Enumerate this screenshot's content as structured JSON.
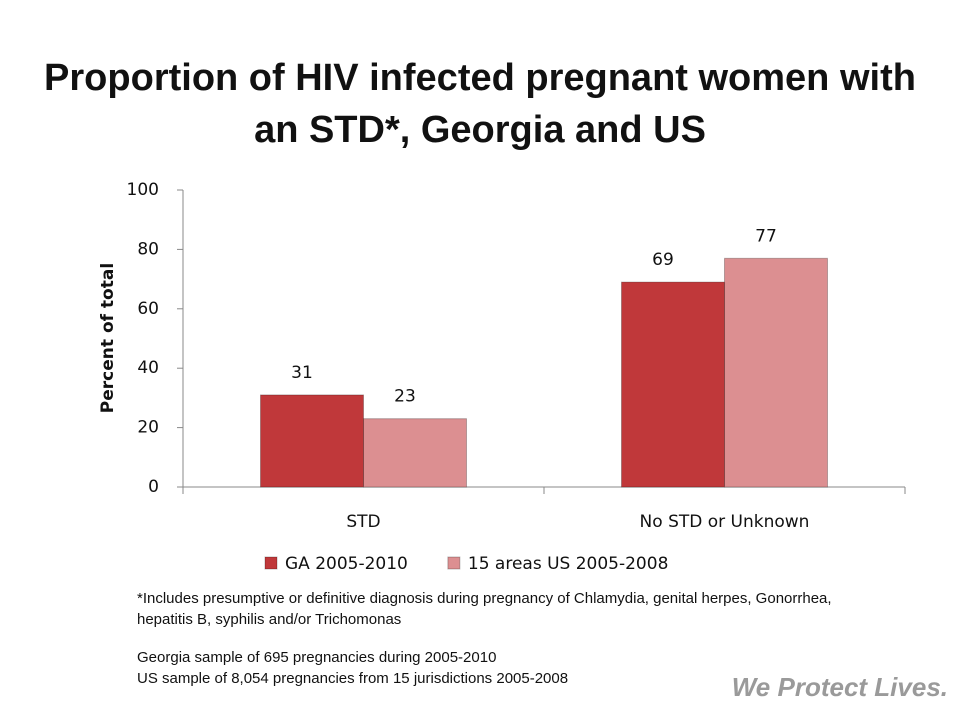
{
  "chart_data": {
    "type": "bar",
    "title": "Proportion of HIV infected pregnant women with an STD*, Georgia and US",
    "y_axis_label": "Percent of total",
    "categories": [
      "STD",
      "No STD or Unknown"
    ],
    "series": [
      {
        "name": "GA 2005-2010",
        "color": "#c0383a",
        "values": [
          31,
          69
        ]
      },
      {
        "name": "15 areas US 2005-2008",
        "color": "#dc8f91",
        "values": [
          23,
          77
        ]
      }
    ],
    "ylim": [
      0,
      100
    ],
    "yticks": [
      0,
      20,
      40,
      60,
      80,
      100
    ],
    "grid": false,
    "legend": "bottom",
    "footnote": "*Includes presumptive or definitive diagnosis during pregnancy of Chlamydia, genital herpes, Gonorrhea, hepatitis B, syphilis and/or Trichomonas",
    "notes": [
      "Georgia sample of 695 pregnancies during 2005-2010",
      "US sample of 8,054 pregnancies from 15 jurisdictions 2005-2008"
    ],
    "brand": "We Protect Lives."
  }
}
